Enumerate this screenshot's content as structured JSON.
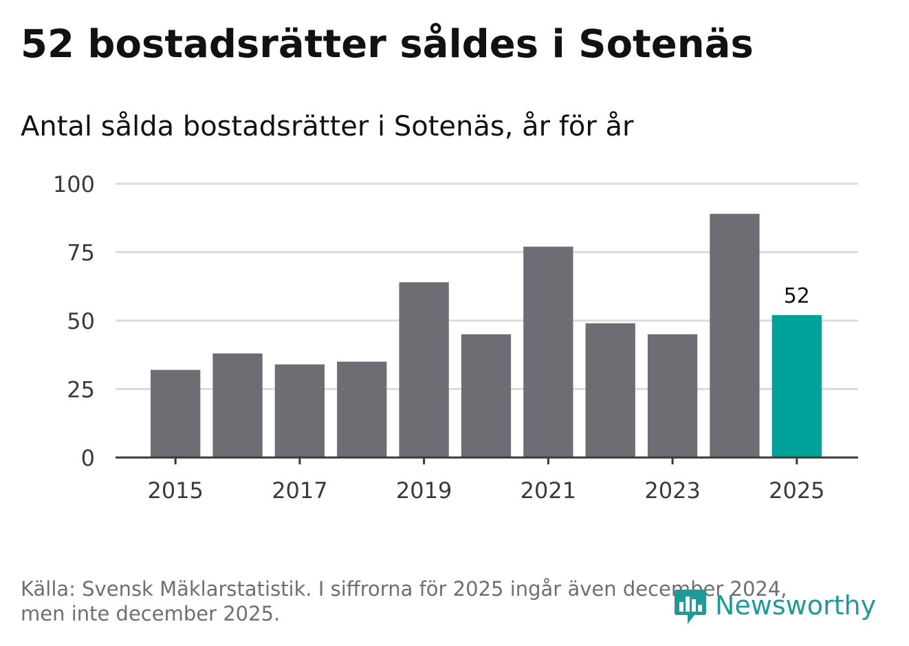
{
  "chart_data": {
    "type": "bar",
    "title": "52 bostadsrätter såldes i Sotenäs",
    "subtitle": "Antal sålda bostadsrätter i Sotenäs, år för år",
    "xlabel": "",
    "ylabel": "",
    "categories": [
      "2015",
      "2016",
      "2017",
      "2018",
      "2019",
      "2020",
      "2021",
      "2022",
      "2023",
      "2024",
      "2025"
    ],
    "values": [
      32,
      38,
      34,
      35,
      64,
      45,
      77,
      49,
      45,
      89,
      52
    ],
    "ylim": [
      0,
      100
    ],
    "yticks": [
      "0",
      "25",
      "50",
      "75",
      "100"
    ],
    "xticks": [
      "2015",
      "2017",
      "2019",
      "2021",
      "2023",
      "2025"
    ],
    "grid": true,
    "annotations": [
      {
        "category": "2025",
        "label": "52"
      }
    ],
    "colors": {
      "bar": "#6e6d73",
      "highlight": "#00a29a",
      "grid": "#dcdcdc",
      "axis": "#3a3a3a",
      "tick_label": "#3a3a3a"
    },
    "highlight_category": "2025"
  },
  "footer": {
    "source_line1": "Källa: Svensk Mäklarstatistik. I siffrorna för 2025 ingår även december 2024,",
    "source_line2": "men inte december 2025.",
    "brand": "Newsworthy",
    "brand_icon": "newsworthy-logo-icon",
    "brand_color": "#1f9a98"
  }
}
